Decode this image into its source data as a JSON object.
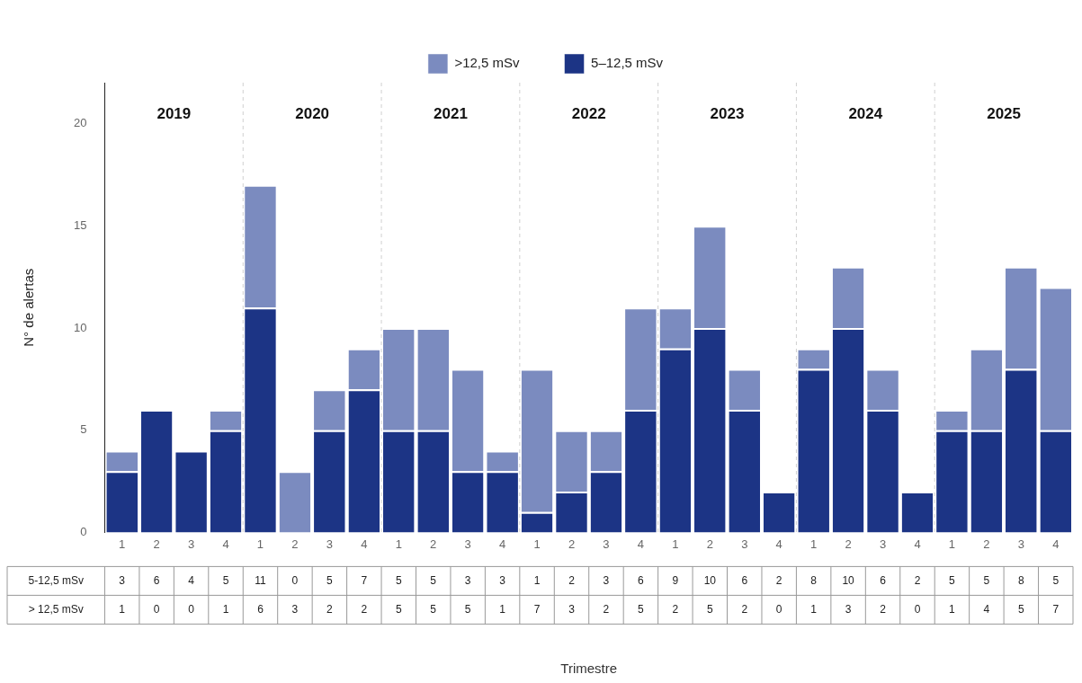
{
  "chart_data": {
    "type": "bar",
    "stacked": true,
    "ylabel": "N° de alertas",
    "categories": [
      "1",
      "2",
      "3",
      "4",
      "1",
      "2",
      "3",
      "4",
      "1",
      "2",
      "3",
      "4",
      "1",
      "2",
      "3",
      "4",
      "1",
      "2",
      "3",
      "4",
      "1",
      "2",
      "3",
      "4",
      "1",
      "2",
      "3",
      "4"
    ],
    "series": [
      {
        "name": "5–12,5 mSv",
        "color": "#1c3485",
        "values": [
          3,
          6,
          4,
          5,
          11,
          0,
          5,
          7,
          5,
          5,
          3,
          3,
          1,
          2,
          3,
          6,
          9,
          10,
          6,
          2,
          8,
          10,
          6,
          2,
          5,
          5,
          8,
          5
        ]
      },
      {
        "name": ">12,5 mSv",
        "color": "#7b8bbf",
        "values": [
          1,
          0,
          0,
          1,
          6,
          3,
          2,
          2,
          5,
          5,
          5,
          1,
          7,
          3,
          2,
          5,
          2,
          5,
          2,
          0,
          1,
          3,
          2,
          0,
          1,
          4,
          5,
          7
        ]
      }
    ],
    "ylim": [
      0,
      22
    ],
    "yticks": [
      0,
      5,
      10,
      15,
      20
    ],
    "grid": false,
    "legend": "top",
    "data_labels": true,
    "annotations": [
      "2019",
      "2020",
      "2021",
      "2022",
      "2023",
      "2024",
      "2025",
      "Trimestre",
      "5-12,5 mSv",
      "> 12,5 mSv"
    ]
  }
}
